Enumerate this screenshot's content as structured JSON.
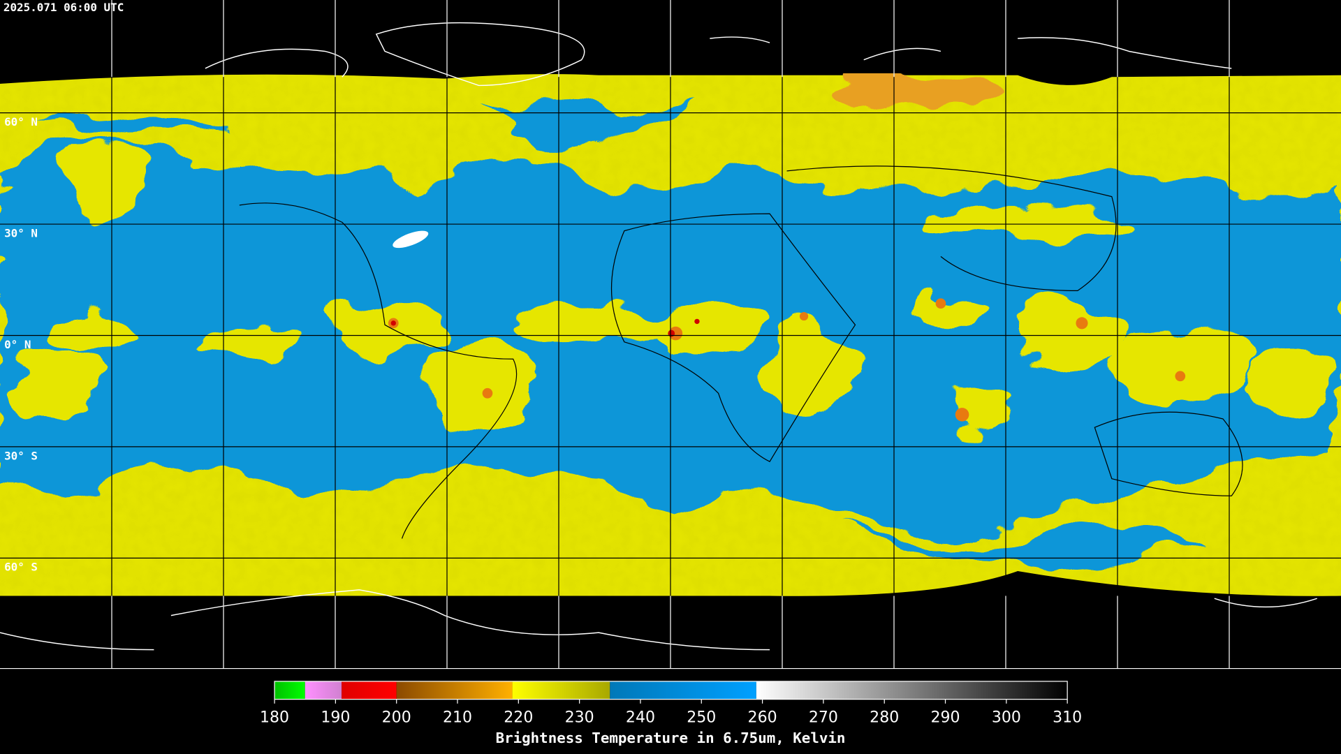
{
  "header": {
    "title": "2025.071 06:00 UTC"
  },
  "map": {
    "latitude_labels": [
      "60° N",
      "30° N",
      "0° N",
      "30° S",
      "60° S"
    ]
  },
  "colorbar": {
    "range": [
      180,
      310
    ],
    "ticks": [
      180,
      190,
      200,
      210,
      220,
      230,
      240,
      250,
      260,
      270,
      280,
      290,
      300,
      310
    ],
    "label": "Brightness Temperature in 6.75um, Kelvin",
    "segments": [
      {
        "start": 180,
        "end": 185,
        "colors": [
          "#00c000",
          "#00ff00"
        ]
      },
      {
        "start": 185,
        "end": 191,
        "colors": [
          "#ff90ff",
          "#d080d0"
        ]
      },
      {
        "start": 191,
        "end": 200,
        "colors": [
          "#e00000",
          "#ff0000"
        ]
      },
      {
        "start": 200,
        "end": 219,
        "colors": [
          "#8b4a00",
          "#ffb000"
        ]
      },
      {
        "start": 219,
        "end": 235,
        "colors": [
          "#ffff00",
          "#a8a800"
        ]
      },
      {
        "start": 235,
        "end": 259,
        "colors": [
          "#0078b8",
          "#00a0ff"
        ]
      },
      {
        "start": 259,
        "end": 310,
        "colors": [
          "#ffffff",
          "#000000"
        ]
      }
    ]
  }
}
